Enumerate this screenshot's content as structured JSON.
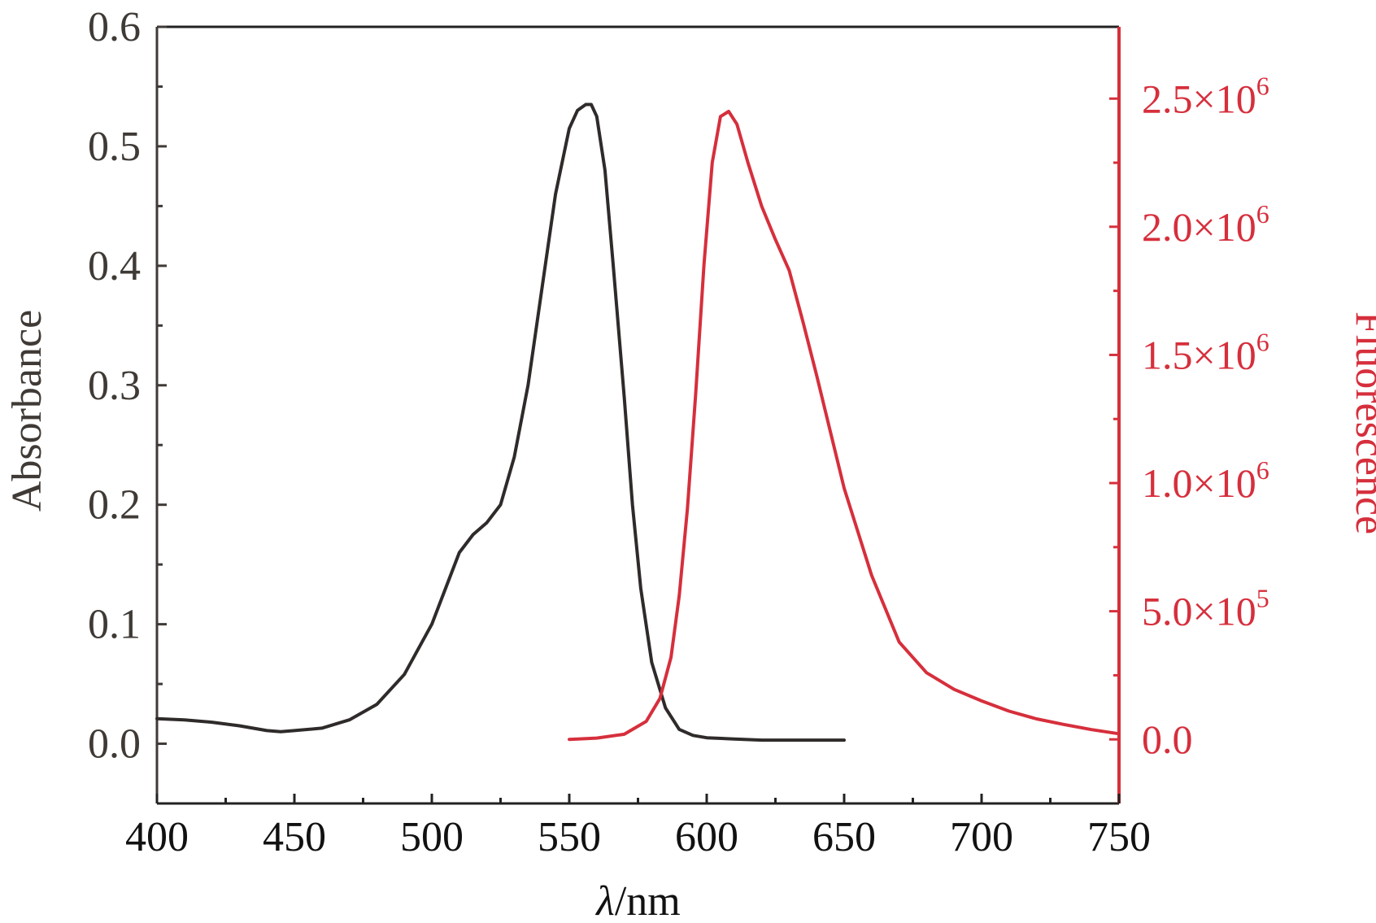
{
  "chart_data": {
    "type": "line",
    "xlabel_var": "λ",
    "xlabel_unit": "/nm",
    "ylabel": "Absorbance",
    "y2label": "Fluorescence",
    "xlim": [
      400,
      750
    ],
    "ylim": [
      -0.05,
      0.6
    ],
    "y2lim": [
      -250000,
      2780000
    ],
    "x_ticks": [
      "400",
      "450",
      "500",
      "550",
      "600",
      "650",
      "700",
      "750"
    ],
    "x_tick_values": [
      400,
      450,
      500,
      550,
      600,
      650,
      700,
      750
    ],
    "y_ticks": [
      "0.0",
      "0.1",
      "0.2",
      "0.3",
      "0.4",
      "0.5",
      "0.6"
    ],
    "y_tick_values": [
      0,
      0.1,
      0.2,
      0.3,
      0.4,
      0.5,
      0.6
    ],
    "y2_ticks": [
      {
        "value": 0,
        "mantissa": "0.0",
        "exp": ""
      },
      {
        "value": 500000,
        "mantissa": "5.0×10",
        "exp": "5"
      },
      {
        "value": 1000000,
        "mantissa": "1.0×10",
        "exp": "6"
      },
      {
        "value": 1500000,
        "mantissa": "1.5×10",
        "exp": "6"
      },
      {
        "value": 2000000,
        "mantissa": "2.0×10",
        "exp": "6"
      },
      {
        "value": 2500000,
        "mantissa": "2.5×10",
        "exp": "6"
      }
    ],
    "colors": {
      "absorbance": "#2f2b2a",
      "fluorescence": "#d62f3c",
      "left_axis": "#3f3a36",
      "right_axis": "#d62f3c",
      "frame": "#222222"
    },
    "series": [
      {
        "axis": "left",
        "x": [
          400,
          410,
          420,
          430,
          440,
          445,
          450,
          460,
          470,
          480,
          490,
          500,
          505,
          510,
          515,
          520,
          525,
          530,
          535,
          540,
          545,
          550,
          553,
          556,
          558,
          560,
          563,
          566,
          570,
          573,
          576,
          580,
          585,
          590,
          595,
          600,
          610,
          620,
          630,
          640,
          650
        ],
        "y": [
          0.021,
          0.02,
          0.018,
          0.015,
          0.011,
          0.01,
          0.011,
          0.013,
          0.02,
          0.033,
          0.058,
          0.1,
          0.13,
          0.16,
          0.175,
          0.185,
          0.2,
          0.24,
          0.3,
          0.38,
          0.46,
          0.515,
          0.53,
          0.535,
          0.535,
          0.525,
          0.48,
          0.4,
          0.29,
          0.2,
          0.13,
          0.068,
          0.03,
          0.012,
          0.007,
          0.005,
          0.004,
          0.003,
          0.003,
          0.003,
          0.003
        ]
      },
      {
        "axis": "right",
        "x": [
          550,
          560,
          570,
          578,
          583,
          587,
          590,
          593,
          596,
          599,
          602,
          605,
          608,
          611,
          615,
          620,
          625,
          630,
          635,
          640,
          645,
          650,
          660,
          670,
          680,
          690,
          700,
          710,
          720,
          730,
          740,
          750
        ],
        "y": [
          0,
          5000,
          20000,
          70000,
          160000,
          320000,
          560000,
          900000,
          1350000,
          1850000,
          2250000,
          2430000,
          2450000,
          2400000,
          2250000,
          2080000,
          1950000,
          1830000,
          1630000,
          1420000,
          1200000,
          980000,
          640000,
          380000,
          260000,
          195000,
          150000,
          110000,
          80000,
          58000,
          38000,
          22000
        ]
      }
    ]
  }
}
